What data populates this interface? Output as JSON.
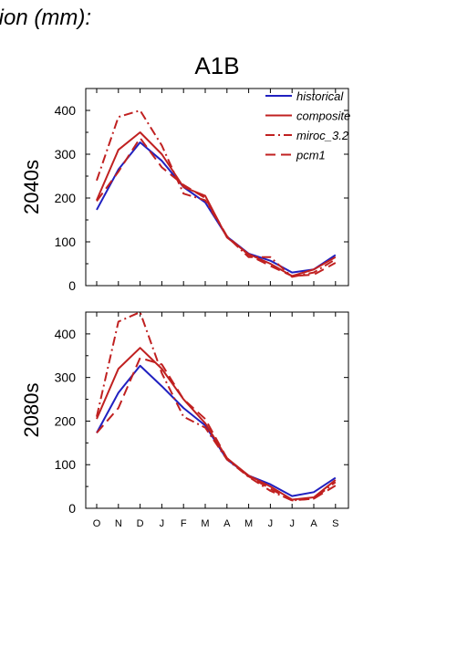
{
  "header": {
    "title": "tion (mm):"
  },
  "chart_data": {
    "type": "line",
    "title": "A1B",
    "categories": [
      "O",
      "N",
      "D",
      "J",
      "F",
      "M",
      "A",
      "M",
      "J",
      "J",
      "A",
      "S"
    ],
    "ylim": [
      0,
      450
    ],
    "yticks": [
      0,
      100,
      200,
      300,
      400
    ],
    "grid": false,
    "legend_position": "top-right",
    "colors": {
      "historical": "#2020c0",
      "model": "#c02020"
    },
    "legend": [
      {
        "name": "historical",
        "color": "#2020c0",
        "dash": "solid"
      },
      {
        "name": "composite",
        "color": "#c02020",
        "dash": "solid"
      },
      {
        "name": "miroc_3.2",
        "color": "#c02020",
        "dash": "dashdot"
      },
      {
        "name": "pcm1",
        "color": "#c02020",
        "dash": "dashed"
      }
    ],
    "panels": [
      {
        "label": "2040s",
        "series": [
          {
            "name": "historical",
            "values": [
              173,
              265,
              327,
              285,
              225,
              190,
              112,
              73,
              57,
              30,
              37,
              70
            ]
          },
          {
            "name": "composite",
            "values": [
              195,
              310,
              350,
              300,
              225,
              205,
              110,
              72,
              50,
              22,
              37,
              65
            ]
          },
          {
            "name": "miroc_3.2",
            "values": [
              240,
              385,
              400,
              320,
              210,
              195,
              112,
              65,
              65,
              20,
              30,
              60
            ]
          },
          {
            "name": "pcm1",
            "values": [
              193,
              260,
              337,
              270,
              230,
              200,
              113,
              70,
              45,
              22,
              25,
              52
            ]
          }
        ]
      },
      {
        "label": "2080s",
        "series": [
          {
            "name": "historical",
            "values": [
              173,
              265,
              327,
              280,
              230,
              190,
              112,
              75,
              55,
              28,
              37,
              70
            ]
          },
          {
            "name": "composite",
            "values": [
              205,
              320,
              368,
              320,
              250,
              195,
              115,
              75,
              50,
              20,
              25,
              65
            ]
          },
          {
            "name": "miroc_3.2",
            "values": [
              210,
              428,
              450,
              310,
              210,
              185,
              112,
              72,
              40,
              18,
              22,
              60
            ]
          },
          {
            "name": "pcm1",
            "values": [
              173,
              230,
              345,
              330,
              250,
              205,
              115,
              73,
              45,
              18,
              22,
              52
            ]
          }
        ]
      }
    ]
  }
}
